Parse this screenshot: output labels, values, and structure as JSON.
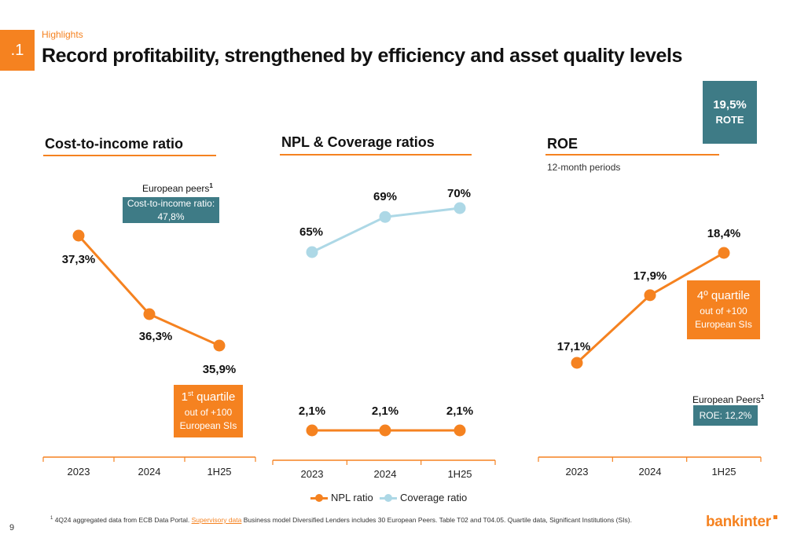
{
  "header": {
    "section_number": ".1",
    "kicker": "Highlights",
    "title": "Record profitability, strengthened by efficiency and asset quality levels"
  },
  "rote": {
    "value": "19,5%",
    "label": "ROTE"
  },
  "panels": {
    "cir": {
      "title": "Cost-to-income ratio",
      "peer_label": "European peers",
      "peer_sup": "1",
      "peer_box_line1": "Cost-to-income ratio:",
      "peer_box_line2": "47,8%",
      "quartile_big": "1",
      "quartile_sup": "st",
      "quartile_big_rest": " quartile",
      "quartile_line2": "out of +100",
      "quartile_line3": "European SIs"
    },
    "npl": {
      "title": "NPL & Coverage ratios"
    },
    "roe": {
      "title": "ROE",
      "subtitle": "12-month periods",
      "quartile_line1": "4º quartile",
      "quartile_line2": "out of +100",
      "quartile_line3": "European SIs",
      "peer_label": "European Peers",
      "peer_sup": "1",
      "peer_box": "ROE: 12,2%"
    }
  },
  "legend": {
    "npl": "NPL ratio",
    "coverage": "Coverage ratio"
  },
  "footnote": {
    "sup": "1",
    "part1": " 4Q24 aggregated data from ECB Data Portal. ",
    "link": "Supervisory data",
    "part2": " Business model Diversified Lenders includes 30 European Peers. Table T02 and T04.05. Quartile data, Significant Institutions (SIs)."
  },
  "page_number": "9",
  "logo_text": "bankinter",
  "colors": {
    "orange": "#F58220",
    "light_blue": "#ADD8E6",
    "teal": "#3E7B86"
  },
  "chart_data": [
    {
      "type": "line",
      "title": "Cost-to-income ratio",
      "categories": [
        "2023",
        "2024",
        "1H25"
      ],
      "series": [
        {
          "values": [
            37.3,
            36.3,
            35.9
          ],
          "labels": [
            "37,3%",
            "36,3%",
            "35,9%"
          ],
          "color": "#F58220"
        }
      ],
      "ylim": [
        35,
        38
      ],
      "grid": false
    },
    {
      "type": "line",
      "title": "NPL & Coverage ratios",
      "categories": [
        "2023",
        "2024",
        "1H25"
      ],
      "series": [
        {
          "name": "NPL ratio",
          "values": [
            2.1,
            2.1,
            2.1
          ],
          "labels": [
            "2,1%",
            "2,1%",
            "2,1%"
          ],
          "color": "#F58220"
        },
        {
          "name": "Coverage ratio",
          "values": [
            65,
            69,
            70
          ],
          "labels": [
            "65%",
            "69%",
            "70%"
          ],
          "color": "#ADD8E6"
        }
      ],
      "legend": "bottom",
      "grid": false
    },
    {
      "type": "line",
      "title": "ROE",
      "categories": [
        "2023",
        "2024",
        "1H25"
      ],
      "series": [
        {
          "values": [
            17.1,
            17.9,
            18.4
          ],
          "labels": [
            "17,1%",
            "17,9%",
            "18,4%"
          ],
          "color": "#F58220"
        }
      ],
      "ylim": [
        16.8,
        18.6
      ],
      "grid": false
    }
  ]
}
